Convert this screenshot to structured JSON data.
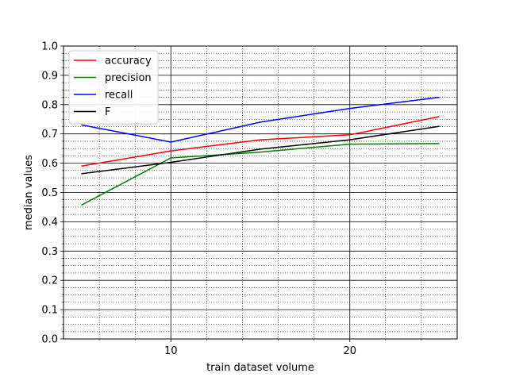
{
  "chart_data": {
    "type": "line",
    "title": "",
    "xlabel": "train dataset volume",
    "ylabel": "median values",
    "xlim": [
      4,
      26
    ],
    "ylim": [
      0.0,
      1.0
    ],
    "x_major_ticks": [
      10,
      20
    ],
    "x_minor_ticks": [
      6,
      8,
      12,
      14,
      16,
      18,
      22,
      24
    ],
    "y_major_ticks": [
      0.0,
      0.1,
      0.2,
      0.3,
      0.4,
      0.5,
      0.6,
      0.7,
      0.8,
      0.9,
      1.0
    ],
    "y_tick_labels": [
      "0.0",
      "0.1",
      "0.2",
      "0.3",
      "0.4",
      "0.5",
      "0.6",
      "0.7",
      "0.8",
      "0.9",
      "1.0"
    ],
    "x_tick_labels": [
      "10",
      "20"
    ],
    "grid": true,
    "legend_position": "top-left",
    "x": [
      5,
      10,
      15,
      20,
      25
    ],
    "series": [
      {
        "name": "accuracy",
        "color": "#ff0000",
        "values": [
          0.59,
          0.642,
          0.68,
          0.697,
          0.759
        ]
      },
      {
        "name": "precision",
        "color": "#008000",
        "values": [
          0.457,
          0.618,
          0.638,
          0.665,
          0.667
        ]
      },
      {
        "name": "recall",
        "color": "#0000ff",
        "values": [
          0.731,
          0.672,
          0.74,
          0.787,
          0.825
        ]
      },
      {
        "name": "F",
        "color": "#000000",
        "values": [
          0.564,
          0.603,
          0.648,
          0.68,
          0.726
        ]
      }
    ]
  }
}
